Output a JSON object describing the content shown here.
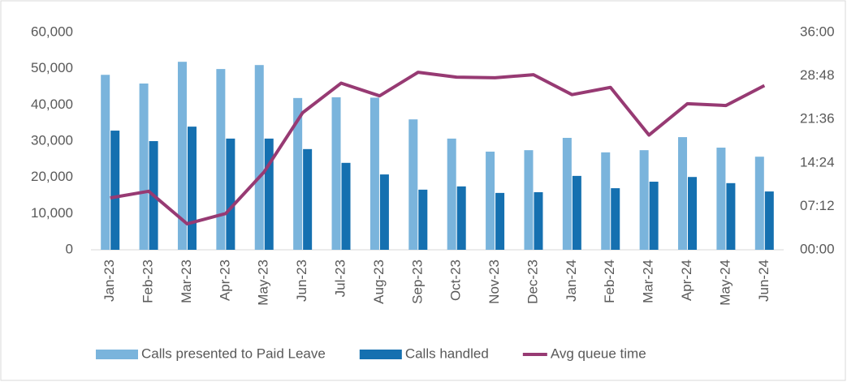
{
  "chart_data": {
    "type": "bar",
    "categories": [
      "Jan-23",
      "Feb-23",
      "Mar-23",
      "Apr-23",
      "May-23",
      "Jun-23",
      "Jul-23",
      "Aug-23",
      "Sep-23",
      "Oct-23",
      "Nov-23",
      "Dec-23",
      "Jan-24",
      "Feb-24",
      "Mar-24",
      "Apr-24",
      "May-24",
      "Jun-24"
    ],
    "series": [
      {
        "name": "Calls presented to Paid Leave",
        "type": "bar",
        "color": "#7ab4dc",
        "values": [
          48300,
          45900,
          51900,
          49900,
          51000,
          41900,
          42100,
          42000,
          36000,
          30700,
          27100,
          27500,
          30900,
          26900,
          27500,
          31100,
          28200,
          25700
        ]
      },
      {
        "name": "Calls handled",
        "type": "bar",
        "color": "#1570b0",
        "values": [
          32900,
          30000,
          34000,
          30700,
          30700,
          27800,
          24000,
          20800,
          16600,
          17500,
          15700,
          15900,
          20400,
          17000,
          18800,
          20100,
          18400,
          16100
        ]
      },
      {
        "name": "Avg queue time",
        "type": "line",
        "axis": "y2",
        "color": "#973a73",
        "values": [
          8.6,
          9.7,
          4.3,
          6.0,
          12.9,
          22.7,
          27.6,
          25.5,
          29.4,
          28.6,
          28.5,
          29.0,
          25.7,
          26.9,
          19.0,
          24.2,
          23.9,
          27.2
        ]
      }
    ],
    "ylim": [
      0,
      60000
    ],
    "yticks": [
      0,
      {
        "value": 10000,
        "label": "10,000"
      },
      {
        "value": 20000,
        "label": "20,000"
      },
      {
        "value": 30000,
        "label": "30,000"
      },
      {
        "value": 40000,
        "label": "40,000"
      },
      {
        "value": 50000,
        "label": "50,000"
      },
      {
        "value": 60000,
        "label": "60,000"
      }
    ],
    "y2lim": [
      0,
      36
    ],
    "y2ticks": [
      {
        "value": 0,
        "label": "00:00"
      },
      {
        "value": 7.2,
        "label": "07:12"
      },
      {
        "value": 14.4,
        "label": "14:24"
      },
      {
        "value": 21.6,
        "label": "21:36"
      },
      {
        "value": 28.8,
        "label": "28:48"
      },
      {
        "value": 36,
        "label": "36:00"
      }
    ],
    "grid": false,
    "legend": "bottom"
  }
}
